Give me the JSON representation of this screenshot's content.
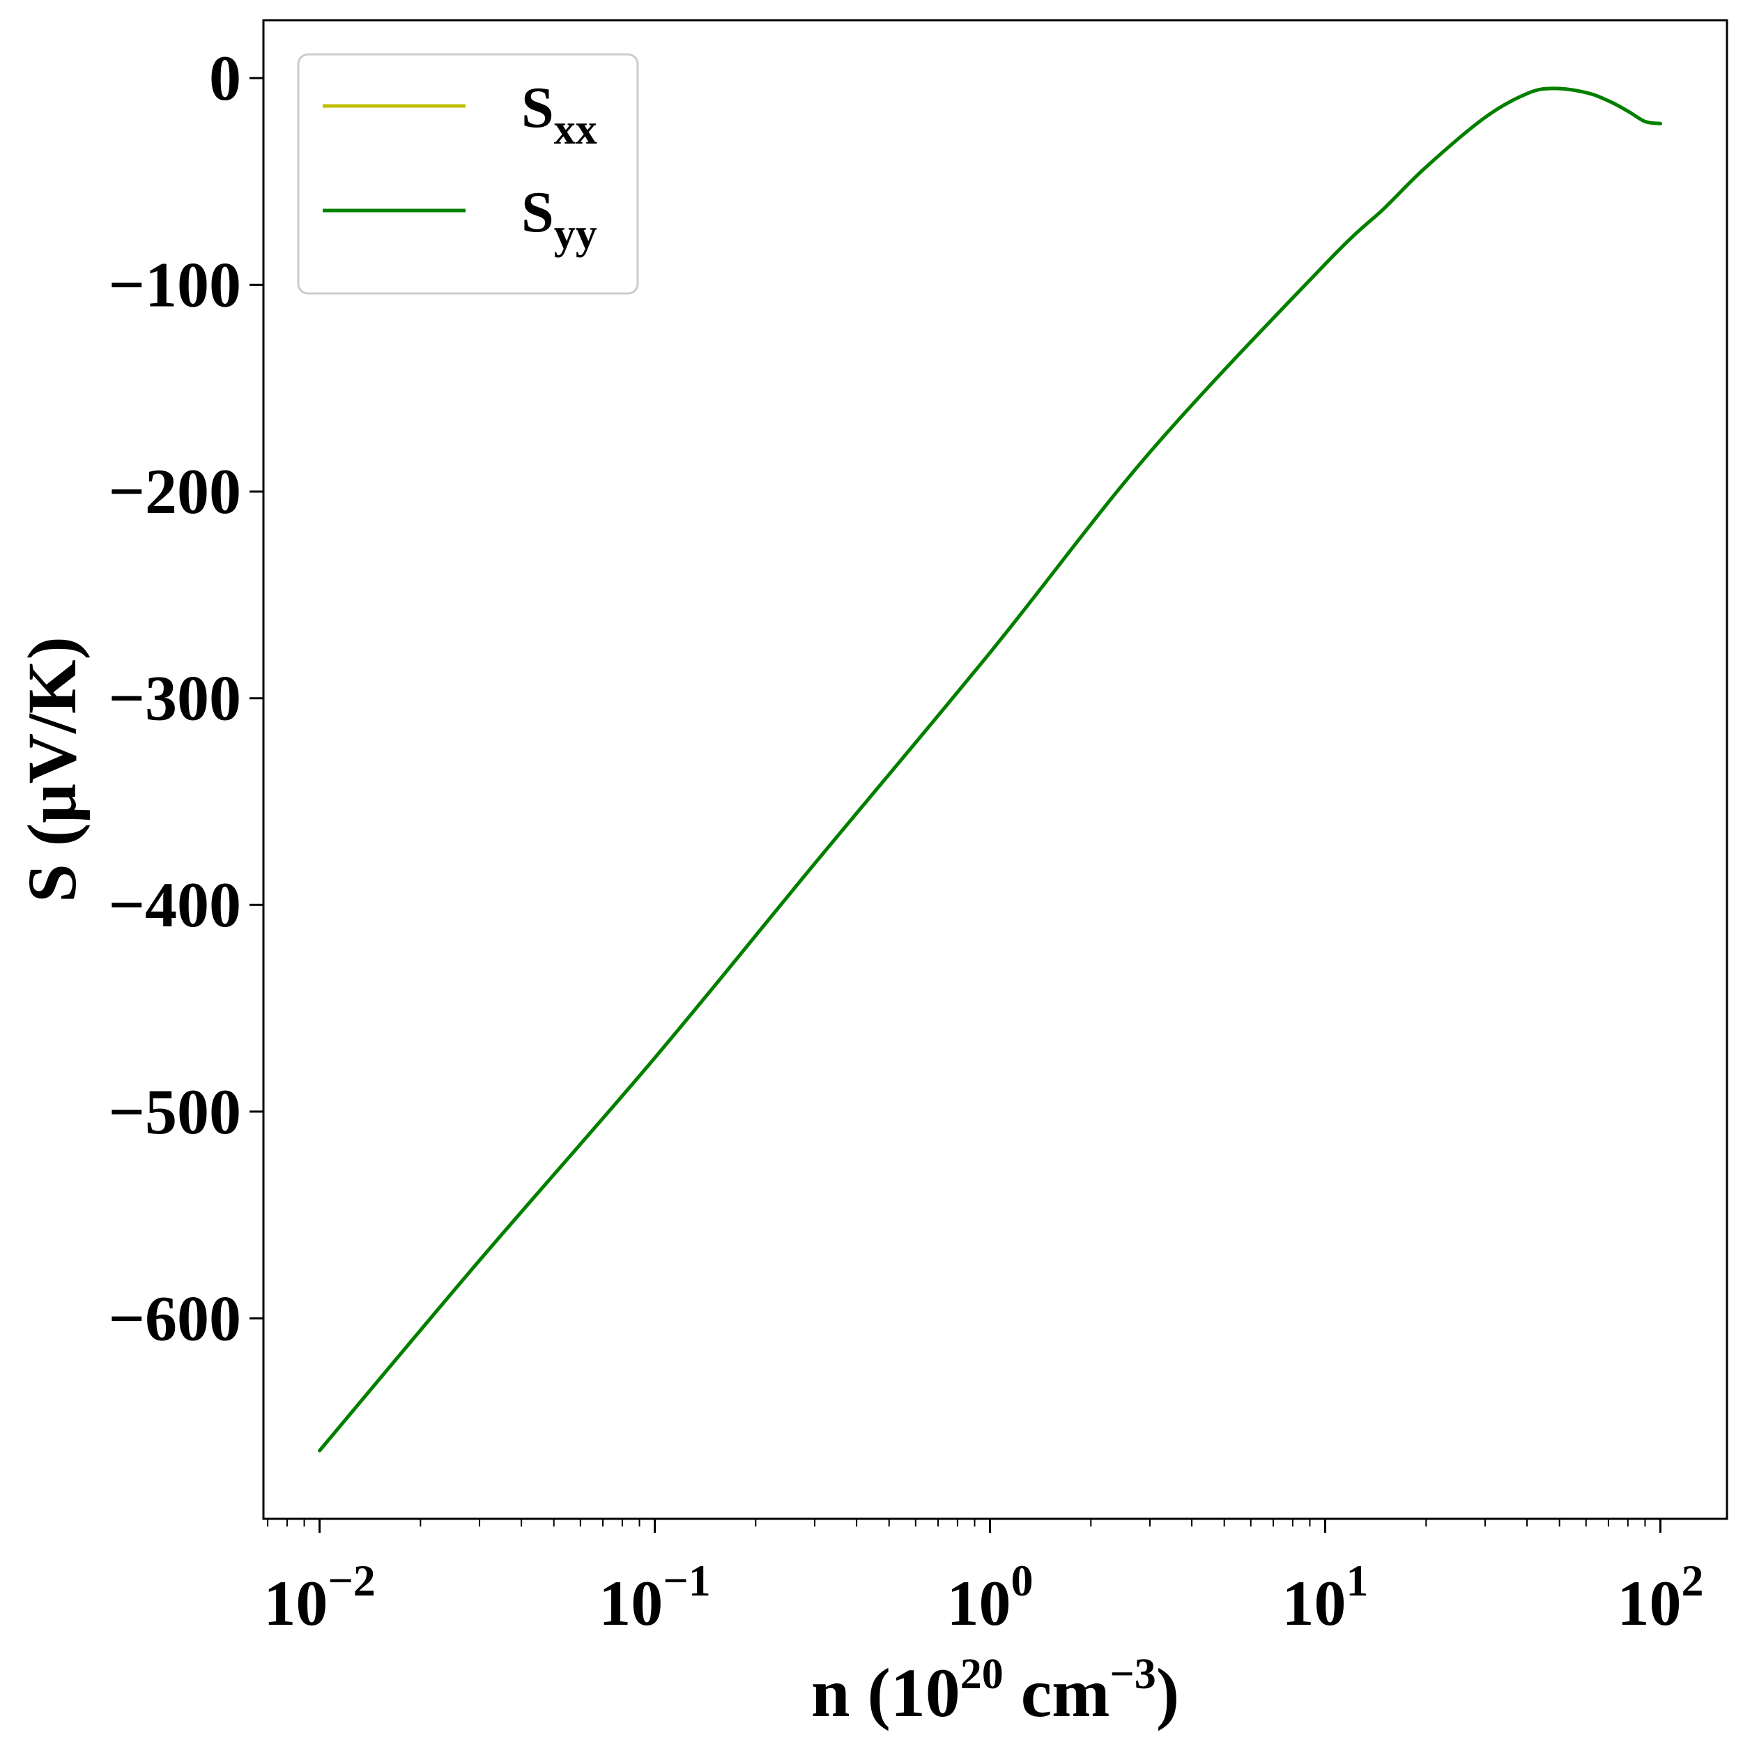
{
  "chart_data": {
    "type": "line",
    "xscale": "log",
    "xlim": [
      0.0068,
      158
    ],
    "ylim": [
      -697,
      28
    ],
    "xlabel": "n (10^20 cm^-3)",
    "xlabel_parts": {
      "pre": "n (10",
      "sup1": "20",
      "mid": " cm",
      "sup2": "−3",
      "post": ")"
    },
    "ylabel": "S (μV/K)",
    "yticks": [
      0,
      -100,
      -200,
      -300,
      -400,
      -500,
      -600
    ],
    "ytick_labels": [
      "0",
      "−100",
      "−200",
      "−300",
      "−400",
      "−500",
      "−600"
    ],
    "xticks": [
      0.01,
      0.1,
      1,
      10,
      100
    ],
    "xtick_labels": [
      {
        "base": "10",
        "exp": "−2"
      },
      {
        "base": "10",
        "exp": "−1"
      },
      {
        "base": "10",
        "exp": "0"
      },
      {
        "base": "10",
        "exp": "1"
      },
      {
        "base": "10",
        "exp": "2"
      }
    ],
    "legend_position": "upper-left",
    "series": [
      {
        "name": "S_xx",
        "label_main": "S",
        "label_sub": "xx",
        "color": "#bfbf00",
        "x": [
          0.01,
          0.03,
          0.1,
          0.3,
          1,
          3,
          10,
          15,
          20,
          30,
          40,
          48,
          60,
          70,
          80,
          90,
          100
        ],
        "y": [
          -664,
          -572,
          -474,
          -380,
          -278,
          -181,
          -90,
          -63,
          -43,
          -19,
          -7.5,
          -5,
          -7,
          -11,
          -16,
          -21,
          -22
        ]
      },
      {
        "name": "S_yy",
        "label_main": "S",
        "label_sub": "yy",
        "color": "#008000",
        "x": [
          0.01,
          0.03,
          0.1,
          0.3,
          1,
          3,
          10,
          15,
          20,
          30,
          40,
          48,
          60,
          70,
          80,
          90,
          100
        ],
        "y": [
          -664,
          -572,
          -474,
          -380,
          -278,
          -181,
          -90,
          -63,
          -43,
          -19,
          -7.5,
          -5,
          -7,
          -11,
          -16,
          -21,
          -22
        ]
      }
    ]
  }
}
